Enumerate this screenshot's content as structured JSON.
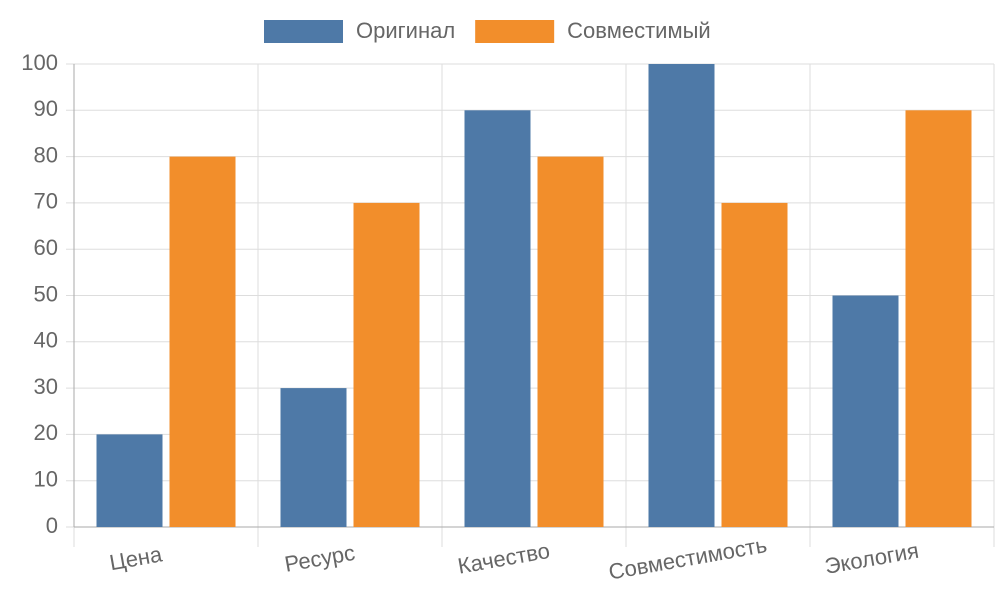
{
  "chart_data": {
    "type": "bar",
    "categories": [
      "Цена",
      "Ресурс",
      "Качество",
      "Совместимость",
      "Экология"
    ],
    "series": [
      {
        "name": "Оригинал",
        "color": "#4e79a7",
        "values": [
          20,
          30,
          90,
          100,
          50
        ]
      },
      {
        "name": "Совместимый",
        "color": "#f28e2b",
        "values": [
          80,
          70,
          80,
          70,
          90
        ]
      }
    ],
    "ylim": [
      0,
      100
    ],
    "yticks": [
      0,
      10,
      20,
      30,
      40,
      50,
      60,
      70,
      80,
      90,
      100
    ],
    "grid": true,
    "legend": "top"
  }
}
